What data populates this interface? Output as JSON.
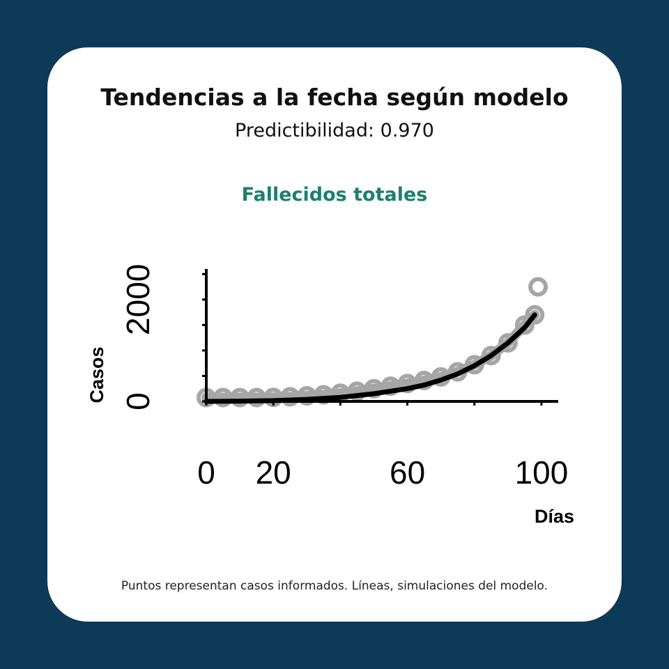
{
  "colors": {
    "background": "#0d3a56",
    "card": "#ffffff",
    "accent": "#1e7f6e",
    "points": "#a6a6a6",
    "line": "#000000"
  },
  "header": {
    "title": "Tendencias a la fecha según modelo",
    "subtitle": "Predictibilidad: 0.970"
  },
  "footnote": "Puntos representan casos informados. Líneas, simulaciones del modelo.",
  "chart_data": {
    "type": "scatter",
    "title": "Fallecidos totales",
    "xlabel": "Días",
    "ylabel": "Casos",
    "xlim": [
      0,
      105
    ],
    "ylim": [
      0,
      2600
    ],
    "x_ticks": [
      0,
      20,
      40,
      60,
      80,
      100
    ],
    "x_tick_labels": [
      "0",
      "20",
      "",
      "60",
      "",
      "100"
    ],
    "y_ticks": [
      0,
      500,
      1000,
      1500,
      2000,
      2500
    ],
    "y_tick_labels": [
      "0",
      "",
      "",
      "",
      "2000",
      ""
    ],
    "series": [
      {
        "kind": "points",
        "x": [
          0,
          5,
          10,
          15,
          20,
          25,
          30,
          35,
          40,
          45,
          50,
          55,
          60,
          65,
          70,
          75,
          80,
          85,
          90,
          95,
          98,
          99
        ],
        "y": [
          75,
          75,
          75,
          75,
          80,
          90,
          110,
          130,
          160,
          200,
          250,
          300,
          350,
          410,
          480,
          580,
          720,
          900,
          1150,
          1500,
          1700,
          2250
        ]
      },
      {
        "kind": "line",
        "x": [
          0,
          10,
          20,
          30,
          40,
          50,
          60,
          65,
          70,
          75,
          80,
          85,
          90,
          95,
          98
        ],
        "y": [
          0,
          5,
          15,
          40,
          80,
          150,
          250,
          320,
          420,
          540,
          700,
          900,
          1150,
          1450,
          1700
        ]
      }
    ]
  }
}
